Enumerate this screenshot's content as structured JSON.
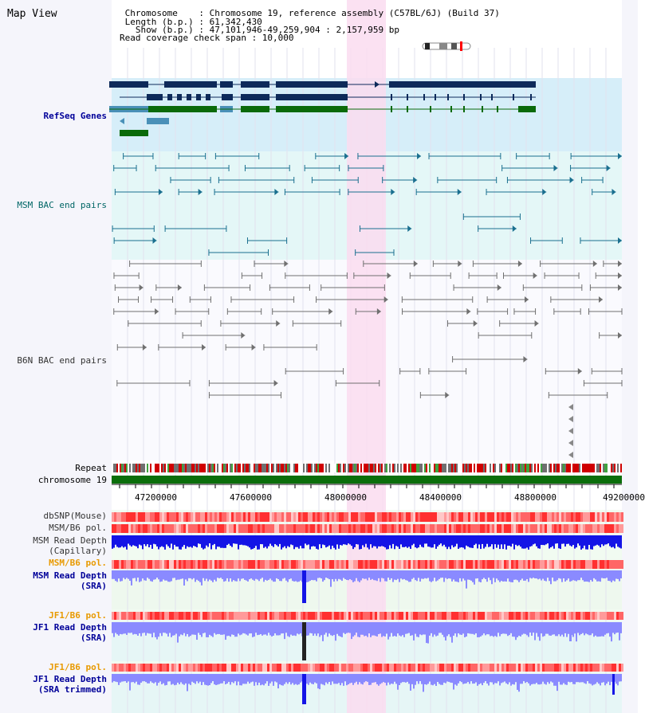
{
  "header": {
    "title": "Map View",
    "lines": [
      " Chromosome    : Chromosome 19, reference assembly (C57BL/6J) (Build 37)",
      " Length (b.p.) : 61,342,430",
      "   Show (b.p.) : 47,101,946-49,259,904 : 2,157,959 bp",
      "Read coverage check span : 10,000"
    ]
  },
  "tracks": {
    "refseq": "RefSeq Genes",
    "msm_bac": "MSM BAC end pairs",
    "b6n_bac": "B6N BAC end pairs",
    "repeat": "Repeat",
    "chromosome": "chromosome 19",
    "dbsnp": "dbSNP(Mouse)",
    "msm_b6_pol": "MSM/B6 pol.",
    "msm_rd_cap_1": "MSM Read Depth",
    "msm_rd_cap_2": "(Capillary)",
    "msm_b6_pol_2": "MSM/B6 pol.",
    "msm_rd_sra_1": "MSM Read Depth",
    "msm_rd_sra_2": "(SRA)",
    "jf1_b6_pol": "JF1/B6 pol.",
    "jf1_rd_sra_1": "JF1 Read Depth",
    "jf1_rd_sra_2": "(SRA)",
    "jf1_b6_pol_2": "JF1/B6 pol.",
    "jf1_rd_trim_1": "JF1 Read Depth",
    "jf1_rd_trim_2": "(SRA trimmed)"
  },
  "axis": {
    "ticks": [
      "47200000",
      "47600000",
      "48000000",
      "48400000",
      "48800000",
      "49200000"
    ]
  },
  "colors": {
    "refseq_dark": "#0d2a5a",
    "refseq_mid": "#4a90b8",
    "refseq_green": "#0a6a0a",
    "msm_bac": "#1a6f8f",
    "b6n_bac": "#707070",
    "highlight": "#fadcf0",
    "chromosome": "#0b6e0b",
    "polymorphism": "#ff6060",
    "depth_dark_blue": "#1414e6",
    "depth_light_blue": "#8a8aff",
    "label_blue": "#000099",
    "label_orange": "#e89a00",
    "label_teal": "#006666"
  }
}
